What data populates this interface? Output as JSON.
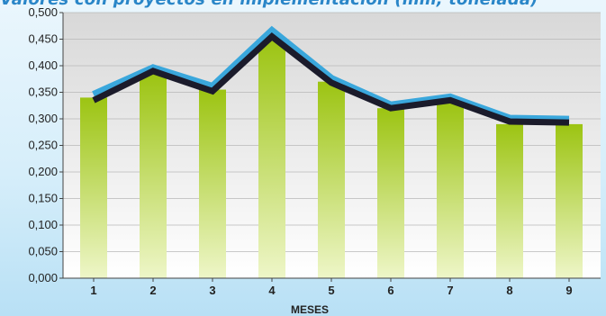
{
  "chart_data": {
    "type": "bar",
    "title": "Valores con proyectos en implementación (mm, tonelada)",
    "xlabel": "MESES",
    "ylabel": "",
    "categories": [
      "1",
      "2",
      "3",
      "4",
      "5",
      "6",
      "7",
      "8",
      "9"
    ],
    "bar_values": [
      0.34,
      0.385,
      0.355,
      0.45,
      0.37,
      0.32,
      0.33,
      0.29,
      0.29
    ],
    "line_series": [
      {
        "name": "",
        "values": [
          0.345,
          0.395,
          0.36,
          0.465,
          0.375,
          0.325,
          0.34,
          0.3,
          0.298
        ],
        "color": "#3aa7dc"
      },
      {
        "name": "",
        "values": [
          0.335,
          0.39,
          0.352,
          0.455,
          0.368,
          0.32,
          0.335,
          0.295,
          0.293
        ],
        "color": "#1b1b2b"
      }
    ],
    "ylim": [
      0,
      0.5
    ],
    "yticks": [
      "0,000",
      "0,050",
      "0,100",
      "0,150",
      "0,200",
      "0,250",
      "0,300",
      "0,350",
      "0,400",
      "0,450",
      "0,500"
    ],
    "grid": true,
    "colors": {
      "bar_top": "#9cc412",
      "bar_bottom": "#eef6c8",
      "panel_top": "#d8d8d8",
      "panel_bottom": "#ffffff"
    }
  }
}
